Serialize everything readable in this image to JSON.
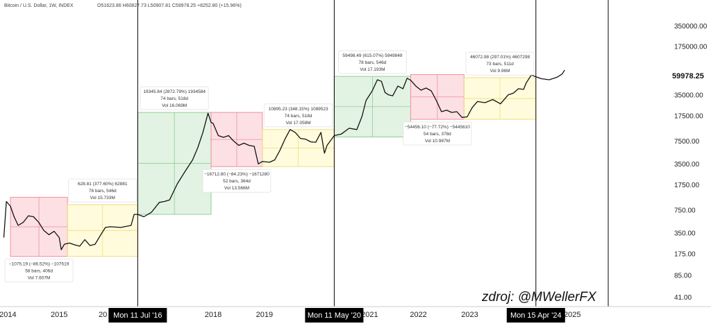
{
  "header": {
    "symbol_line": "Bitcoin / U.S. Dollar, 1W, INDEX",
    "ohlc": "O51623.86 H60827.73 L50907.81 C59978.25 +8252.80 (+15.96%)"
  },
  "watermark": "zdroj: @MWellerFX",
  "last_price_label": "59978.25",
  "chart_data": {
    "type": "line",
    "subtype": "weekly candlestick (price path approximated)",
    "y_scale": "log",
    "ylim": [
      30,
      600000
    ],
    "xlim": [
      2013.9,
      2025.7
    ],
    "y_ticks": [
      "350000.00",
      "175000.00",
      "35000.00",
      "17500.00",
      "7500.00",
      "3500.00",
      "1750.00",
      "750.00",
      "350.00",
      "175.00",
      "85.00",
      "41.00"
    ],
    "y_tick_values": [
      350000,
      175000,
      35000,
      17500,
      7500,
      3500,
      1750,
      750,
      350,
      175,
      85,
      41
    ],
    "x_ticks": [
      {
        "label": "2014",
        "x": 2014.0
      },
      {
        "label": "2015",
        "x": 2015.0
      },
      {
        "label": "2018",
        "x": 2018.0
      },
      {
        "label": "2019",
        "x": 2019.0
      },
      {
        "label": "2021",
        "x": 2021.05
      },
      {
        "label": "2022",
        "x": 2022.0
      },
      {
        "label": "2023",
        "x": 2023.0
      },
      {
        "label": "2025",
        "x": 2025.0
      }
    ],
    "partial_x_ticks": [
      {
        "label": "20",
        "x": 2015.85
      },
      {
        "label": "7",
        "x": 2016.98
      },
      {
        "label": "2",
        "x": 2023.85
      }
    ],
    "halving_markers": [
      {
        "label": "Mon 11 Jul '16",
        "x": 2016.53
      },
      {
        "label": "Mon 11 May '20",
        "x": 2020.36
      },
      {
        "label": "Mon 15 Apr '24",
        "x": 2024.29
      }
    ],
    "range_boxes": [
      {
        "kind": "down",
        "x0": 2014.05,
        "x1": 2015.16,
        "y_top": 1150,
        "y_bottom": 160,
        "line1": "−1075.19 (−86.52%) −107519",
        "line2": "58 bars, 406d",
        "line3": "Vol 7.607M"
      },
      {
        "kind": "flat",
        "x0": 2015.16,
        "x1": 2016.53,
        "y_top": 900,
        "y_bottom": 160,
        "line1": "628.81 (377.60%) 62881",
        "line2": "78 bars, 546d",
        "line3": "Vol 15.733M"
      },
      {
        "kind": "up",
        "x0": 2016.53,
        "x1": 2017.96,
        "y_top": 19500,
        "y_bottom": 650,
        "line1": "19345.84 (2872.79%) 1934584",
        "line2": "74 bars, 518d",
        "line3": "Vol 16.069M"
      },
      {
        "kind": "down",
        "x0": 2017.96,
        "x1": 2018.96,
        "y_top": 19500,
        "y_bottom": 3200,
        "line1": "−16712.80 (−84.23%) −1671280",
        "line2": "52 bars, 364d",
        "line3": "Vol 13.566M"
      },
      {
        "kind": "flat",
        "x0": 2018.96,
        "x1": 2020.36,
        "y_top": 11000,
        "y_bottom": 3200,
        "line1": "10895.23 (348.15%) 1089523",
        "line2": "74 bars, 518d",
        "line3": "Vol 17.059M"
      },
      {
        "kind": "up",
        "x0": 2020.36,
        "x1": 2021.85,
        "y_top": 65000,
        "y_bottom": 8600,
        "line1": "59498.49 (615.07%) 5949849",
        "line2": "78 bars, 546d",
        "line3": "Vol 17.193M"
      },
      {
        "kind": "down",
        "x0": 2021.85,
        "x1": 2022.89,
        "y_top": 69000,
        "y_bottom": 15500,
        "line1": "−54456.10 (−77.72%) −5445610",
        "line2": "54 bars, 378d",
        "line3": "Vol 10.987M"
      },
      {
        "kind": "flat",
        "x0": 2022.89,
        "x1": 2024.29,
        "y_top": 62000,
        "y_bottom": 15500,
        "line1": "46072.98 (297.01%) 4607298",
        "line2": "73 bars, 511d",
        "line3": "Vol 9.96M"
      }
    ],
    "price_series": {
      "x": [
        2013.92,
        2013.97,
        2014.05,
        2014.12,
        2014.2,
        2014.3,
        2014.4,
        2014.5,
        2014.6,
        2014.7,
        2014.8,
        2014.9,
        2015.0,
        2015.04,
        2015.1,
        2015.2,
        2015.3,
        2015.4,
        2015.5,
        2015.6,
        2015.7,
        2015.8,
        2015.9,
        2016.0,
        2016.2,
        2016.4,
        2016.46,
        2016.53,
        2016.65,
        2016.8,
        2016.95,
        2017.05,
        2017.15,
        2017.3,
        2017.45,
        2017.6,
        2017.7,
        2017.8,
        2017.9,
        2017.96,
        2018.0,
        2018.05,
        2018.1,
        2018.2,
        2018.3,
        2018.4,
        2018.5,
        2018.6,
        2018.7,
        2018.8,
        2018.88,
        2018.96,
        2019.1,
        2019.2,
        2019.3,
        2019.4,
        2019.5,
        2019.6,
        2019.7,
        2019.8,
        2019.9,
        2020.0,
        2020.1,
        2020.17,
        2020.22,
        2020.36,
        2020.5,
        2020.65,
        2020.8,
        2020.9,
        2020.98,
        2021.1,
        2021.2,
        2021.28,
        2021.35,
        2021.42,
        2021.5,
        2021.6,
        2021.7,
        2021.78,
        2021.85,
        2021.95,
        2022.05,
        2022.15,
        2022.25,
        2022.35,
        2022.45,
        2022.55,
        2022.65,
        2022.75,
        2022.85,
        2022.95,
        2023.05,
        2023.15,
        2023.3,
        2023.45,
        2023.6,
        2023.75,
        2023.85,
        2023.95,
        2024.05,
        2024.1,
        2024.2,
        2024.29,
        2024.4,
        2024.55,
        2024.7,
        2024.8,
        2024.85
      ],
      "y": [
        300,
        1000,
        850,
        600,
        450,
        500,
        620,
        600,
        500,
        380,
        330,
        370,
        300,
        200,
        240,
        250,
        235,
        225,
        280,
        230,
        240,
        320,
        420,
        430,
        420,
        450,
        650,
        650,
        600,
        700,
        970,
        1000,
        1050,
        1800,
        2700,
        4000,
        6000,
        10000,
        19000,
        14000,
        13500,
        11000,
        9000,
        8500,
        9000,
        7500,
        6500,
        7000,
        6500,
        6300,
        3500,
        3800,
        3700,
        4000,
        5500,
        8000,
        11000,
        10000,
        8200,
        8000,
        7300,
        7200,
        10000,
        5000,
        6500,
        9000,
        9500,
        11500,
        11000,
        17000,
        29000,
        40000,
        58000,
        55000,
        38000,
        35000,
        34000,
        47000,
        43000,
        61000,
        57000,
        47000,
        41000,
        44000,
        40000,
        29000,
        20000,
        21000,
        19500,
        20000,
        16500,
        16800,
        23000,
        28000,
        27000,
        30000,
        26000,
        35000,
        37000,
        43000,
        42000,
        52000,
        68000,
        64000,
        60000,
        58000,
        63000,
        70000,
        80000
      ]
    }
  },
  "colors": {
    "background": "#ffffff",
    "down_fill": "rgba(244, 81, 108, 0.18)",
    "down_line": "#f08fa0",
    "up_fill": "rgba(76, 175, 80, 0.16)",
    "up_line": "#8fcf92",
    "flat_fill": "rgba(255, 235, 59, 0.18)",
    "flat_line": "#f0de7a",
    "price_line": "#111111",
    "halving_line": "#000000",
    "marker_bg": "#000000"
  }
}
